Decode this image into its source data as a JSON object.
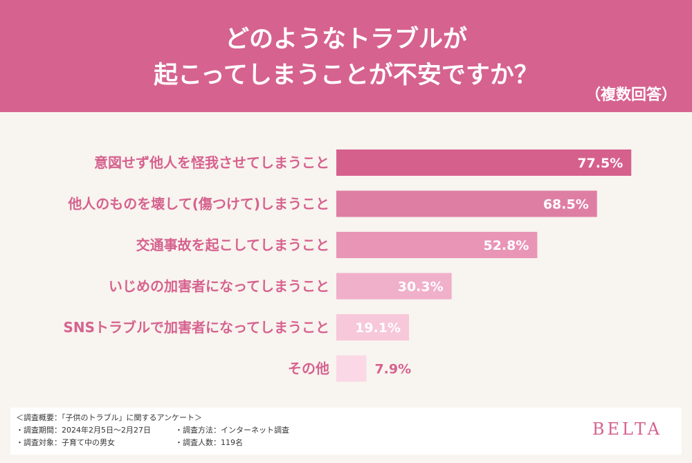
{
  "header": {
    "title_line1": "どのようなトラブルが",
    "title_line2": "起こってしまうことが不安ですか？",
    "note": "（複数回答）"
  },
  "chart_data": {
    "type": "bar",
    "orientation": "horizontal",
    "categories": [
      "意図せず他人を怪我させてしまうこと",
      "他人のものを壊して(傷つけて)しまうこと",
      "交通事故を起こしてしまうこと",
      "いじめの加害者になってしまうこと",
      "SNSトラブルで加害者になってしまうこと",
      "その他"
    ],
    "values": [
      77.5,
      68.5,
      52.8,
      30.3,
      19.1,
      7.9
    ],
    "value_labels": [
      "77.5%",
      "68.5%",
      "52.8%",
      "30.3%",
      "19.1%",
      "7.9%"
    ],
    "colors": [
      "#d6608c",
      "#df7ea3",
      "#e995b5",
      "#f0b0c9",
      "#f7c7da",
      "#fbd8e6"
    ],
    "label_color": "#d6628f",
    "xlim": [
      0,
      100
    ]
  },
  "footer": {
    "line1": "＜調査概要：「子供のトラブル」に関するアンケート＞",
    "period": "・調査期間：2024年2月5日～2月27日",
    "method": "・調査方法：インターネット調査",
    "target": "・調査対象：子育て中の男女",
    "count": "・調査人数：119名",
    "logo": "BELTA"
  }
}
